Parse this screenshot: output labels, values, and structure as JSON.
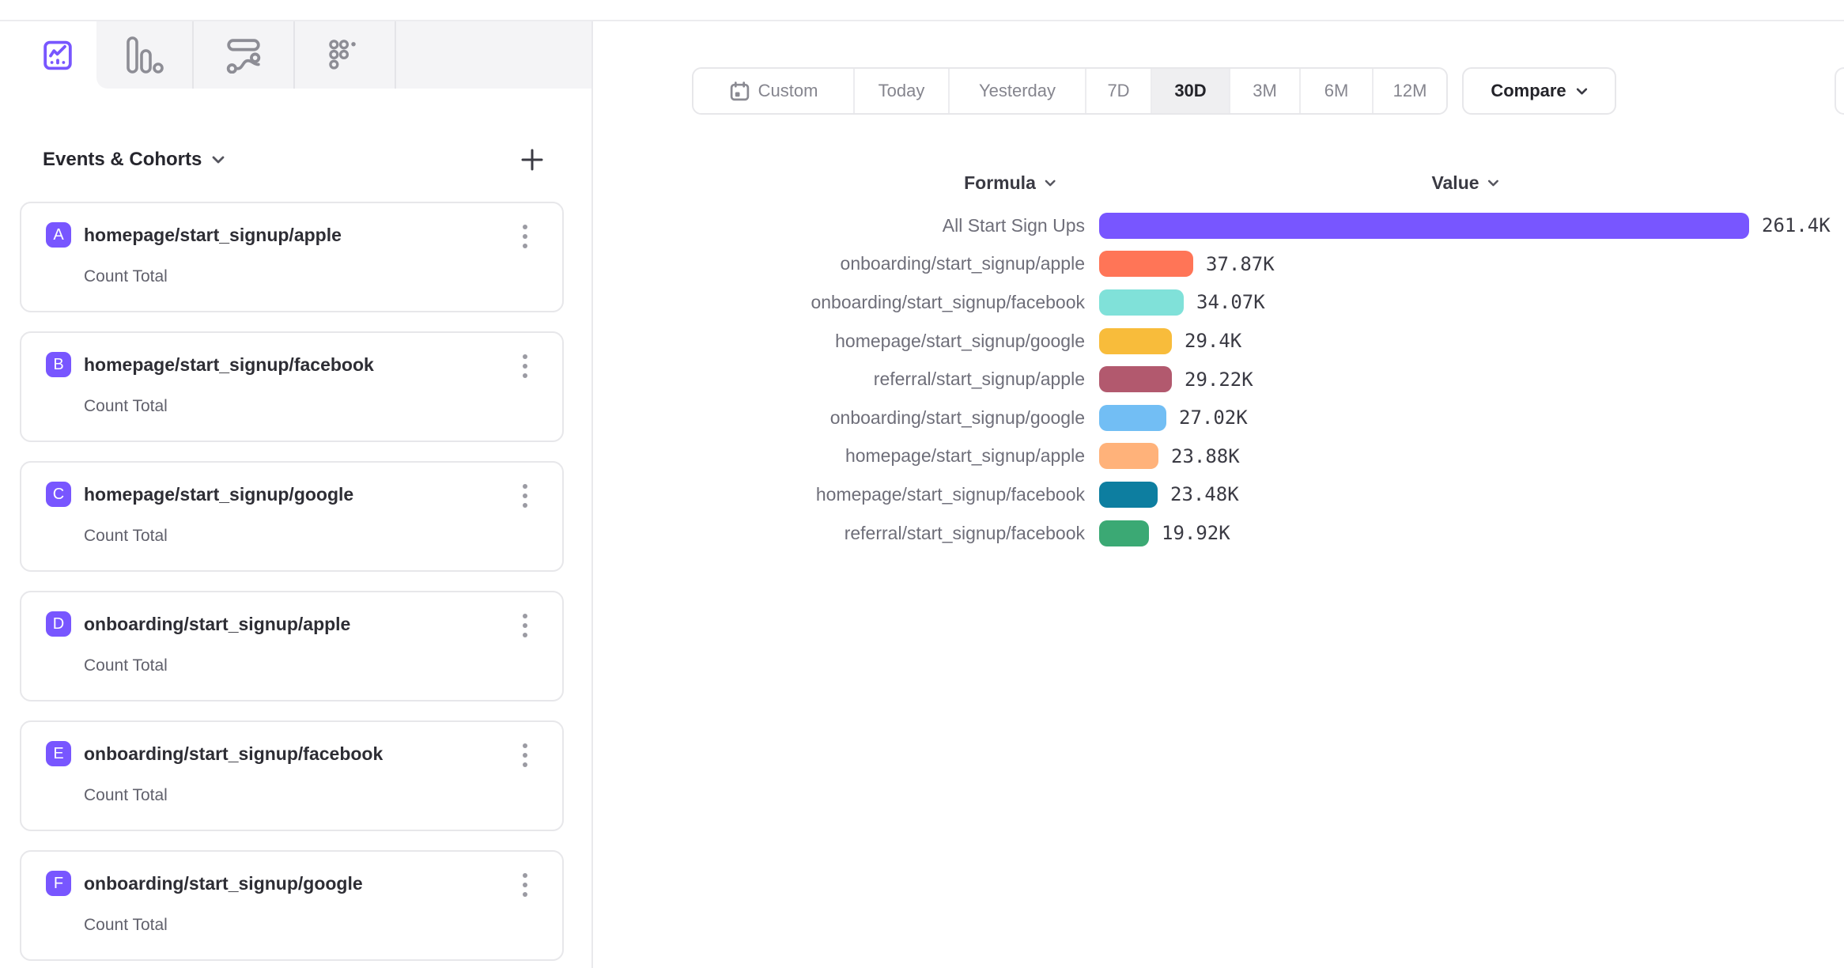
{
  "nav_tabs": [
    {
      "icon": "insights-icon",
      "active": true
    },
    {
      "icon": "funnels-icon",
      "active": false
    },
    {
      "icon": "flows-icon",
      "active": false
    },
    {
      "icon": "retention-icon",
      "active": false
    }
  ],
  "sidebar": {
    "title": "Events & Cohorts",
    "badge_color": "#7856FF",
    "metric_label": "Count Total",
    "events": [
      {
        "letter": "A",
        "name": "homepage/start_signup/apple",
        "metric": "Count Total"
      },
      {
        "letter": "B",
        "name": "homepage/start_signup/facebook",
        "metric": "Count Total"
      },
      {
        "letter": "C",
        "name": "homepage/start_signup/google",
        "metric": "Count Total"
      },
      {
        "letter": "D",
        "name": "onboarding/start_signup/apple",
        "metric": "Count Total"
      },
      {
        "letter": "E",
        "name": "onboarding/start_signup/facebook",
        "metric": "Count Total"
      },
      {
        "letter": "F",
        "name": "onboarding/start_signup/google",
        "metric": "Count Total"
      }
    ]
  },
  "toolbar": {
    "date_ranges": [
      "Custom",
      "Today",
      "Yesterday",
      "7D",
      "30D",
      "3M",
      "6M",
      "12M"
    ],
    "active_range": "30D",
    "compare_label": "Compare"
  },
  "chart": {
    "formula_header": "Formula",
    "value_header": "Value"
  },
  "chart_data": {
    "type": "bar",
    "orientation": "horizontal",
    "title": "",
    "xlabel": "Value",
    "ylabel": "Formula",
    "categories": [
      "All Start Sign Ups",
      "onboarding/start_signup/apple",
      "onboarding/start_signup/facebook",
      "homepage/start_signup/google",
      "referral/start_signup/apple",
      "onboarding/start_signup/google",
      "homepage/start_signup/apple",
      "homepage/start_signup/facebook",
      "referral/start_signup/facebook"
    ],
    "values": [
      261400,
      37870,
      34070,
      29400,
      29220,
      27020,
      23880,
      23480,
      19920
    ],
    "value_labels": [
      "261.4K",
      "37.87K",
      "34.07K",
      "29.4K",
      "29.22K",
      "27.02K",
      "23.88K",
      "23.48K",
      "19.92K"
    ],
    "colors": [
      "#7856FF",
      "#FF7557",
      "#80E1D9",
      "#F8BC3B",
      "#B2596E",
      "#72BEF4",
      "#FFB27A",
      "#0D7EA0",
      "#3BA974"
    ],
    "xlim": [
      0,
      261400
    ],
    "grid": false,
    "legend": false,
    "value_position": "end"
  }
}
